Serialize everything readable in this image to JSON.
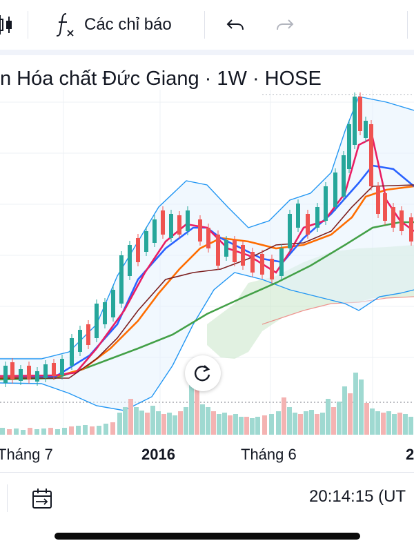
{
  "toolbar": {
    "indicators_label": "Các chỉ báo",
    "icons": [
      "candlestick-icon",
      "function-icon",
      "undo-icon",
      "redo-icon"
    ]
  },
  "chart": {
    "title": "n Hóa chất Đức Giang · 1W · HOSE",
    "colors": {
      "up": "#26a69a",
      "down": "#ef5350",
      "volume_up": "#9fd9d1",
      "volume_down": "#f4b3b2",
      "ma_fast": "#e91e63",
      "ma_mid": "#2962ff",
      "ma_orange": "#ff6d00",
      "ma_slow": "#43a047",
      "ma_brown": "#7b1e1e",
      "bollinger": "#2196f3",
      "cloud_green": "#c8e6c9",
      "cloud_red": "#ffcdd2"
    },
    "x_labels": [
      {
        "text": "Tháng 7",
        "bold": false
      },
      {
        "text": "2016",
        "bold": true
      },
      {
        "text": "Tháng 6",
        "bold": false
      },
      {
        "text": "2",
        "bold": true
      }
    ],
    "reset_icon": "reset-icon"
  },
  "bottom": {
    "time": "20:14:15 (UT",
    "icons": [
      "date-range-icon"
    ]
  }
}
